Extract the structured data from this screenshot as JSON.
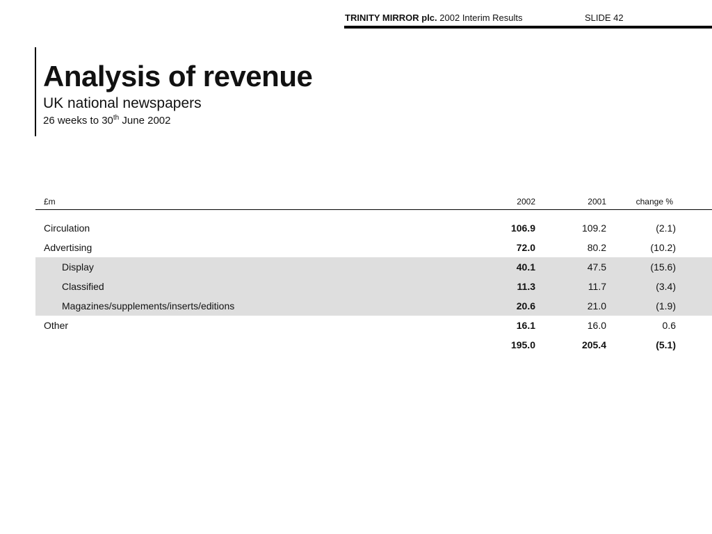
{
  "header": {
    "company": "TRINITY MIRROR plc.",
    "report": "2002 Interim Results",
    "slide": "SLIDE 42"
  },
  "title": "Analysis of revenue",
  "subtitle": "UK national newspapers",
  "period": {
    "prefix": "26 weeks to 30",
    "suffix_sup": "th",
    "rest": " June 2002"
  },
  "table": {
    "columns": {
      "label": "£m",
      "y2002": "2002",
      "y2001": "2001",
      "change": "change %"
    },
    "rows": [
      {
        "label": "Circulation",
        "y2002": "106.9",
        "y2001": "109.2",
        "change": "(2.1)"
      },
      {
        "label": "Advertising",
        "y2002": "72.0",
        "y2001": "80.2",
        "change": "(10.2)"
      },
      {
        "label": "Display",
        "y2002": "40.1",
        "y2001": "47.5",
        "change": "(15.6)"
      },
      {
        "label": "Classified",
        "y2002": "11.3",
        "y2001": "11.7",
        "change": "(3.4)"
      },
      {
        "label": "Magazines/supplements/inserts/editions",
        "y2002": "20.6",
        "y2001": "21.0",
        "change": "(1.9)"
      },
      {
        "label": "Other",
        "y2002": "16.1",
        "y2001": "16.0",
        "change": "0.6"
      },
      {
        "label": "",
        "y2002": "195.0",
        "y2001": "205.4",
        "change": "(5.1)"
      }
    ]
  }
}
